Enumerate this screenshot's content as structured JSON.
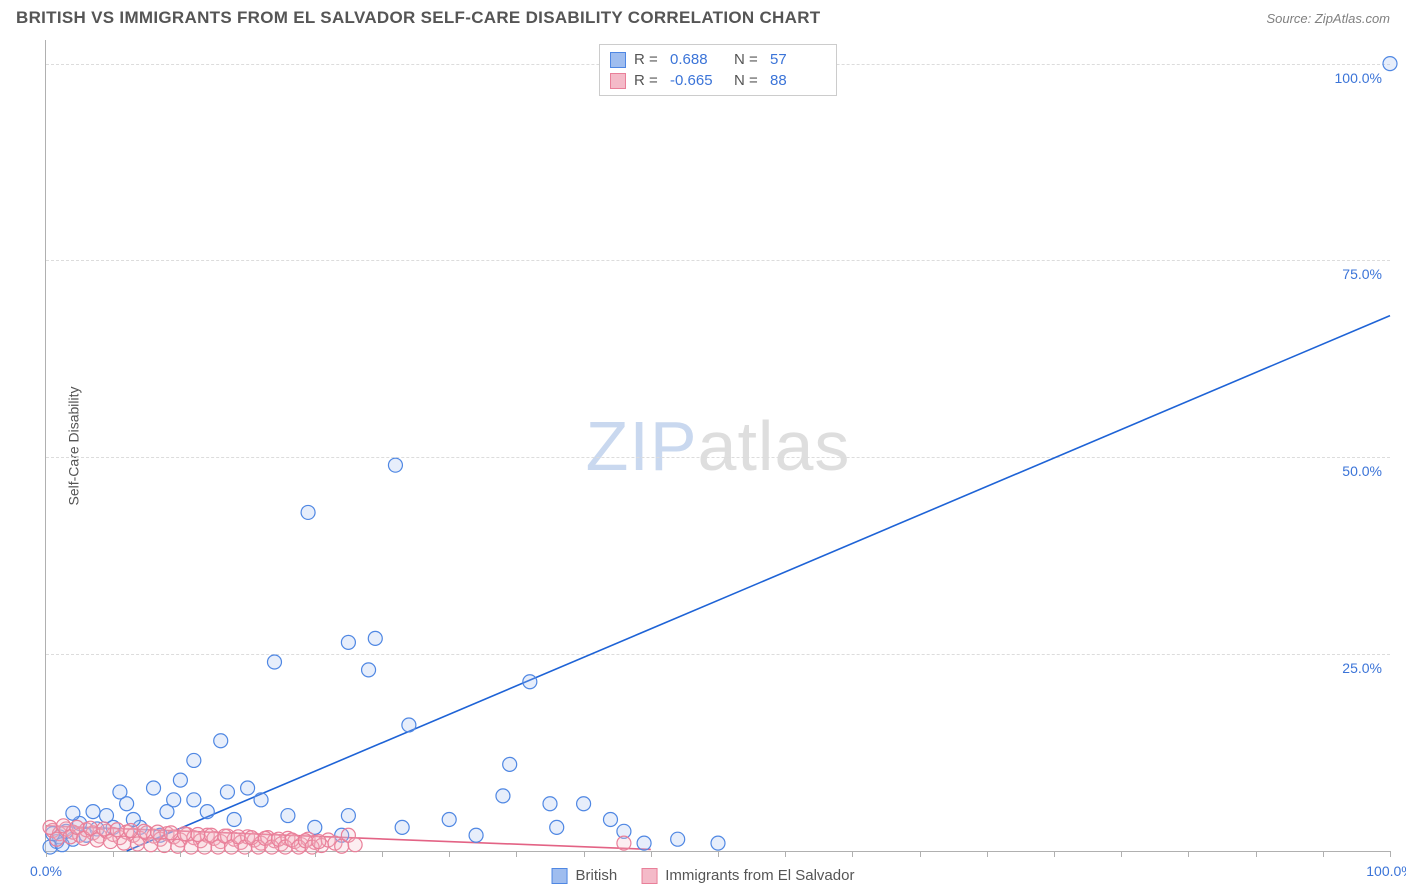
{
  "title": "BRITISH VS IMMIGRANTS FROM EL SALVADOR SELF-CARE DISABILITY CORRELATION CHART",
  "source_label": "Source: ZipAtlas.com",
  "y_axis_label": "Self-Care Disability",
  "watermark": {
    "part1": "ZIP",
    "part2": "atlas"
  },
  "chart": {
    "type": "scatter",
    "xlim": [
      0,
      100
    ],
    "ylim": [
      0,
      103
    ],
    "x_ticks": [
      0,
      5,
      10,
      15,
      20,
      25,
      30,
      35,
      40,
      45,
      50,
      55,
      60,
      65,
      70,
      75,
      80,
      85,
      90,
      95,
      100
    ],
    "x_tick_labels": [
      {
        "pos": 0,
        "label": "0.0%"
      },
      {
        "pos": 100,
        "label": "100.0%"
      }
    ],
    "y_gridlines": [
      25,
      50,
      75,
      100
    ],
    "y_tick_labels": [
      {
        "pos": 25,
        "label": "25.0%"
      },
      {
        "pos": 50,
        "label": "50.0%"
      },
      {
        "pos": 75,
        "label": "75.0%"
      },
      {
        "pos": 100,
        "label": "100.0%"
      }
    ],
    "background_color": "#ffffff",
    "grid_color": "#dcdcdc",
    "marker_radius": 7,
    "marker_fill_opacity": 0.25,
    "marker_stroke_width": 1.2,
    "line_width": 1.6,
    "series": [
      {
        "name": "British",
        "color_stroke": "#4f87e3",
        "color_fill": "#9fbdef",
        "line_color": "#1e63d6",
        "R": "0.688",
        "N": "57",
        "trend_line": {
          "x1": 6,
          "y1": 0,
          "x2": 100,
          "y2": 68
        },
        "points": [
          [
            100,
            100
          ],
          [
            26,
            49
          ],
          [
            19.5,
            43
          ],
          [
            22.5,
            26.5
          ],
          [
            24.5,
            27
          ],
          [
            17,
            24
          ],
          [
            24,
            23
          ],
          [
            27,
            16
          ],
          [
            34,
            7
          ],
          [
            36,
            21.5
          ],
          [
            37.5,
            6
          ],
          [
            40,
            6
          ],
          [
            43,
            2.5
          ],
          [
            47,
            1.5
          ],
          [
            50,
            1
          ],
          [
            13,
            14
          ],
          [
            11,
            11.5
          ],
          [
            10,
            9
          ],
          [
            8,
            8
          ],
          [
            9,
            5
          ],
          [
            11,
            6.5
          ],
          [
            12,
            5
          ],
          [
            14,
            4
          ],
          [
            15,
            8
          ],
          [
            16,
            6.5
          ],
          [
            18,
            4.5
          ],
          [
            20,
            3
          ],
          [
            22,
            2
          ],
          [
            5,
            3
          ],
          [
            4.5,
            4.5
          ],
          [
            6,
            6
          ],
          [
            7,
            3
          ],
          [
            3,
            2
          ],
          [
            2.5,
            3.5
          ],
          [
            2,
            1.5
          ],
          [
            1.5,
            2.5
          ],
          [
            1,
            1.8
          ],
          [
            0.8,
            1.2
          ],
          [
            0.5,
            2.2
          ],
          [
            3.5,
            5
          ],
          [
            5.5,
            7.5
          ],
          [
            6.5,
            4
          ],
          [
            8.5,
            2
          ],
          [
            9.5,
            6.5
          ],
          [
            13.5,
            7.5
          ],
          [
            22.5,
            4.5
          ],
          [
            26.5,
            3
          ],
          [
            30,
            4
          ],
          [
            32,
            2
          ],
          [
            34.5,
            11
          ],
          [
            38,
            3
          ],
          [
            42,
            4
          ],
          [
            44.5,
            1
          ],
          [
            2,
            4.8
          ],
          [
            3.8,
            2.8
          ],
          [
            0.3,
            0.5
          ],
          [
            1.2,
            0.8
          ]
        ]
      },
      {
        "name": "Immigrants from El Salvador",
        "color_stroke": "#e97f99",
        "color_fill": "#f4bac8",
        "line_color": "#e36385",
        "R": "-0.665",
        "N": "88",
        "trend_line": {
          "x1": 0,
          "y1": 3.2,
          "x2": 45,
          "y2": 0.2
        },
        "points": [
          [
            0.5,
            2.6
          ],
          [
            1,
            2.2
          ],
          [
            1.5,
            2.8
          ],
          [
            2,
            2.4
          ],
          [
            2.5,
            2.0
          ],
          [
            3,
            2.7
          ],
          [
            3.5,
            2.3
          ],
          [
            4,
            1.9
          ],
          [
            4.5,
            2.5
          ],
          [
            5,
            2.1
          ],
          [
            5.5,
            1.7
          ],
          [
            6,
            2.4
          ],
          [
            6.5,
            2.0
          ],
          [
            7,
            1.6
          ],
          [
            7.5,
            2.3
          ],
          [
            8,
            1.9
          ],
          [
            8.5,
            1.5
          ],
          [
            9,
            2.2
          ],
          [
            9.5,
            1.8
          ],
          [
            10,
            1.4
          ],
          [
            10.5,
            2.1
          ],
          [
            11,
            1.7
          ],
          [
            11.5,
            1.3
          ],
          [
            12,
            2.0
          ],
          [
            12.5,
            1.6
          ],
          [
            13,
            1.2
          ],
          [
            13.5,
            1.9
          ],
          [
            14,
            1.5
          ],
          [
            14.5,
            1.1
          ],
          [
            15,
            1.8
          ],
          [
            15.5,
            1.4
          ],
          [
            16,
            1.0
          ],
          [
            16.5,
            1.7
          ],
          [
            17,
            1.3
          ],
          [
            17.5,
            0.9
          ],
          [
            18,
            1.6
          ],
          [
            18.5,
            1.2
          ],
          [
            19,
            0.8
          ],
          [
            19.5,
            1.5
          ],
          [
            20,
            1.1
          ],
          [
            20.5,
            0.7
          ],
          [
            21,
            1.4
          ],
          [
            21.5,
            1.0
          ],
          [
            22,
            0.6
          ],
          [
            0.3,
            3.0
          ],
          [
            0.8,
            1.5
          ],
          [
            1.3,
            3.2
          ],
          [
            1.8,
            1.8
          ],
          [
            2.3,
            3.0
          ],
          [
            2.8,
            1.6
          ],
          [
            3.3,
            2.9
          ],
          [
            3.8,
            1.4
          ],
          [
            4.3,
            2.8
          ],
          [
            4.8,
            1.2
          ],
          [
            5.3,
            2.7
          ],
          [
            5.8,
            1.0
          ],
          [
            6.3,
            2.6
          ],
          [
            6.8,
            0.9
          ],
          [
            7.3,
            2.5
          ],
          [
            7.8,
            0.8
          ],
          [
            8.3,
            2.4
          ],
          [
            8.8,
            0.7
          ],
          [
            9.3,
            2.3
          ],
          [
            9.8,
            0.6
          ],
          [
            10.3,
            2.2
          ],
          [
            10.8,
            0.5
          ],
          [
            11.3,
            2.1
          ],
          [
            11.8,
            0.5
          ],
          [
            12.3,
            2.0
          ],
          [
            12.8,
            0.5
          ],
          [
            13.3,
            1.9
          ],
          [
            13.8,
            0.5
          ],
          [
            14.3,
            1.8
          ],
          [
            14.8,
            0.5
          ],
          [
            15.3,
            1.7
          ],
          [
            15.8,
            0.5
          ],
          [
            16.3,
            1.6
          ],
          [
            16.8,
            0.5
          ],
          [
            17.3,
            1.5
          ],
          [
            17.8,
            0.5
          ],
          [
            18.3,
            1.4
          ],
          [
            18.8,
            0.5
          ],
          [
            19.3,
            1.3
          ],
          [
            19.8,
            0.5
          ],
          [
            20.3,
            1.2
          ],
          [
            43,
            1.0
          ],
          [
            22.5,
            2.0
          ],
          [
            23,
            0.8
          ]
        ]
      }
    ]
  },
  "legend_top": [
    {
      "swatch_fill": "#9fbdef",
      "swatch_stroke": "#4f87e3",
      "R_label": "R =",
      "R_val": "0.688",
      "N_label": "N =",
      "N_val": "57"
    },
    {
      "swatch_fill": "#f4bac8",
      "swatch_stroke": "#e97f99",
      "R_label": "R =",
      "R_val": "-0.665",
      "N_label": "N =",
      "N_val": "88"
    }
  ],
  "legend_bottom": [
    {
      "swatch_fill": "#9fbdef",
      "swatch_stroke": "#4f87e3",
      "label": "British"
    },
    {
      "swatch_fill": "#f4bac8",
      "swatch_stroke": "#e97f99",
      "label": "Immigrants from El Salvador"
    }
  ]
}
